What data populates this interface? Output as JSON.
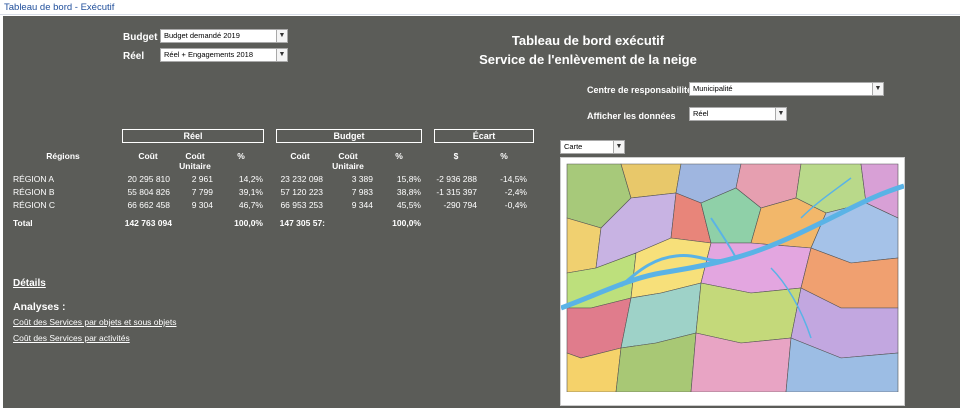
{
  "window": {
    "tab_title": "Tableau de bord - Exécutif"
  },
  "filters": {
    "budget_label": "Budget",
    "budget_value": "Budget demandé 2019",
    "reel_label": "Réel",
    "reel_value": "Réel + Engagements 2018",
    "centre_label": "Centre de responsabilité",
    "centre_value": "Municipalité",
    "afficher_label": "Afficher les données",
    "afficher_value": "Réel",
    "map_view_value": "Carte"
  },
  "header": {
    "title": "Tableau de bord exécutif",
    "subtitle": "Service de l'enlèvement de la neige"
  },
  "table": {
    "groups": {
      "reel": "Réel",
      "budget": "Budget",
      "ecart": "Écart"
    },
    "headers": {
      "regions": "Régions",
      "cout": "Coût",
      "cout_unitaire": "Coût Unitaire",
      "pct": "%",
      "dollar": "$"
    },
    "rows": [
      {
        "region": "RÉGION A",
        "reel_cout": "20 295 810",
        "reel_unit": "2 961",
        "reel_pct": "14,2%",
        "bud_cout": "23 232 098",
        "bud_unit": "3 389",
        "bud_pct": "15,8%",
        "ecart_d": "-2 936 288",
        "ecart_pct": "-14,5%"
      },
      {
        "region": "RÉGION B",
        "reel_cout": "55 804 826",
        "reel_unit": "7 799",
        "reel_pct": "39,1%",
        "bud_cout": "57 120 223",
        "bud_unit": "7 983",
        "bud_pct": "38,8%",
        "ecart_d": "-1 315 397",
        "ecart_pct": "-2,4%"
      },
      {
        "region": "RÉGION C",
        "reel_cout": "66 662 458",
        "reel_unit": "9 304",
        "reel_pct": "46,7%",
        "bud_cout": "66 953 253",
        "bud_unit": "9 344",
        "bud_pct": "45,5%",
        "ecart_d": "-290 794",
        "ecart_pct": "-0,4%"
      }
    ],
    "total": {
      "label": "Total",
      "reel_cout": "142 763 094",
      "reel_pct": "100,0%",
      "bud_cout": "147 305 57:",
      "bud_pct": "100,0%"
    }
  },
  "links": {
    "details": "Détails",
    "analyses": "Analyses :",
    "link1": "Coût des Services par objets et sous objets",
    "link2": "Coût des Services par activités"
  },
  "colors": {
    "panel": "#5b5c58",
    "river": "#5ab3e6"
  }
}
